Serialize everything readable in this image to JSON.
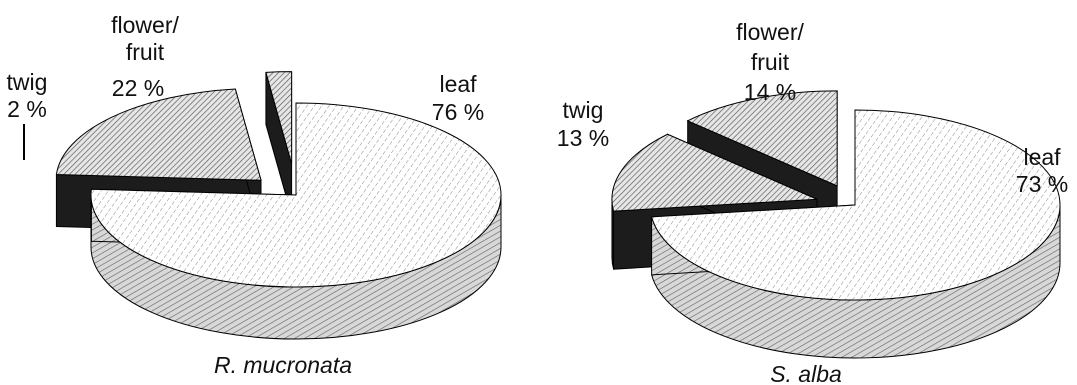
{
  "chart_data": [
    {
      "type": "pie",
      "title": "R. mucronata",
      "categories": [
        "leaf",
        "flower/ fruit",
        "twig"
      ],
      "values": [
        76,
        22,
        2
      ],
      "labels": [
        {
          "category": "leaf",
          "line1": "leaf",
          "line2": "",
          "pct": "76 %"
        },
        {
          "category": "flower/ fruit",
          "line1": "flower/",
          "line2": "fruit",
          "pct": "22 %"
        },
        {
          "category": "twig",
          "line1": "twig",
          "line2": "",
          "pct": "2 %"
        }
      ]
    },
    {
      "type": "pie",
      "title": "S. alba",
      "categories": [
        "leaf",
        "flower/ fruit",
        "twig"
      ],
      "values": [
        73,
        14,
        13
      ],
      "labels": [
        {
          "category": "leaf",
          "line1": "leaf",
          "line2": "",
          "pct": "73 %"
        },
        {
          "category": "flower/ fruit",
          "line1": "flower/",
          "line2": "fruit",
          "pct": "14 %"
        },
        {
          "category": "twig",
          "line1": "twig",
          "line2": "",
          "pct": "13 %"
        }
      ]
    }
  ],
  "colors": {
    "side": "#1c1c1c",
    "outline": "#000000",
    "hatch": "#777777"
  }
}
